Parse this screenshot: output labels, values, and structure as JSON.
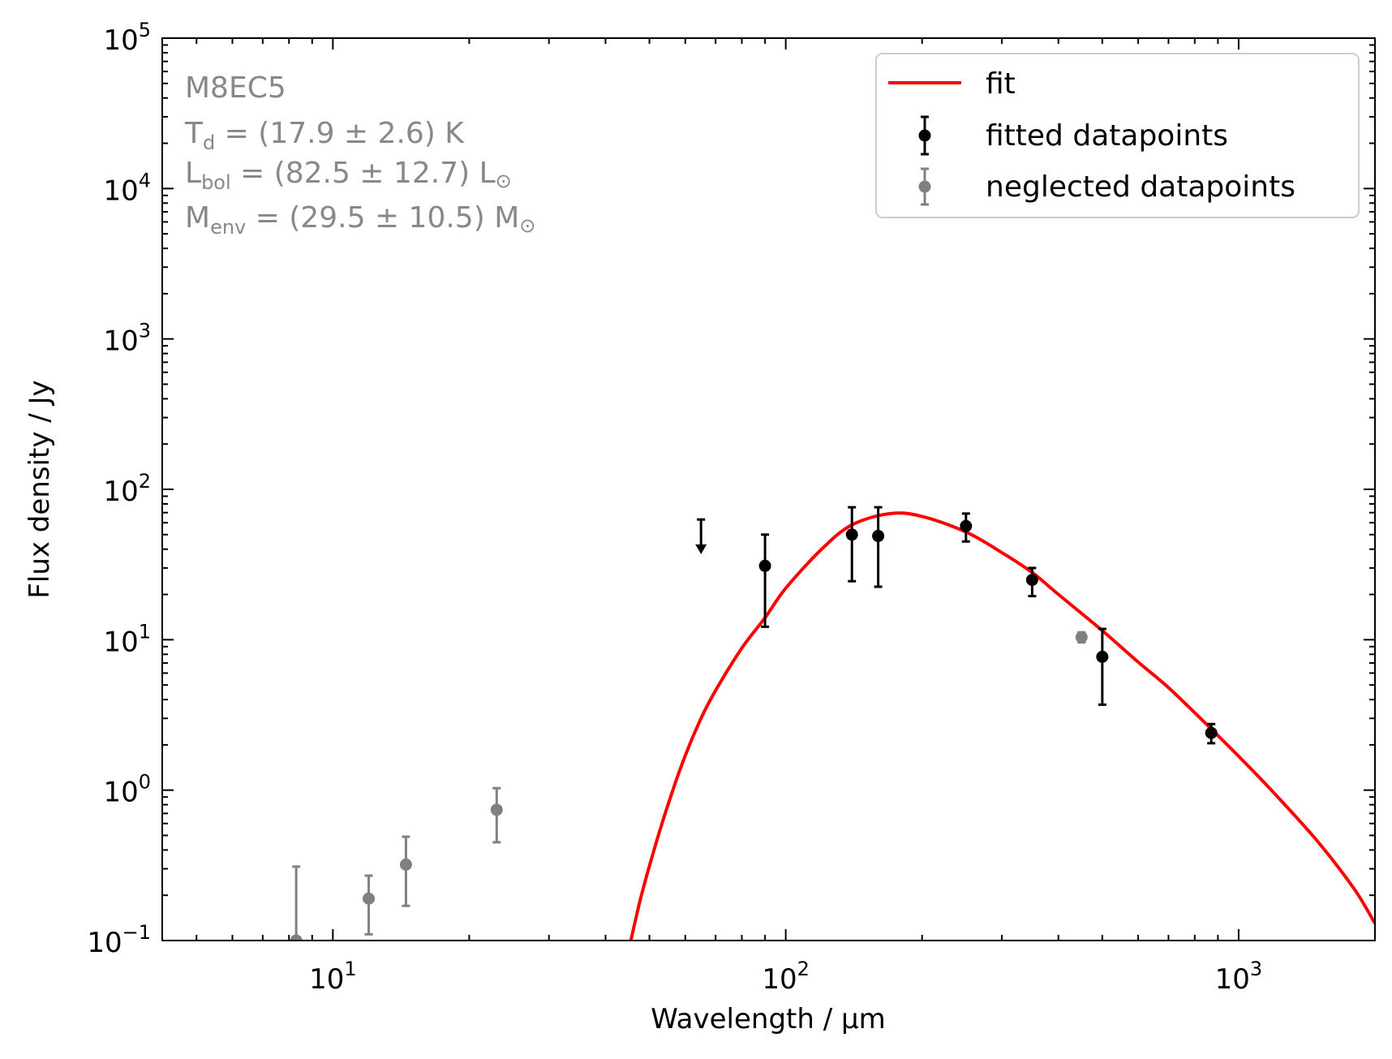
{
  "chart_data": {
    "type": "scatter",
    "xscale": "log",
    "yscale": "log",
    "xlim": [
      4.2,
      2000
    ],
    "ylim": [
      0.1,
      100000
    ],
    "xlabel": "Wavelength / μm",
    "ylabel": "Flux density / Jy",
    "x_ticks": [
      {
        "value": 10,
        "base": "10",
        "exp": "1"
      },
      {
        "value": 100,
        "base": "10",
        "exp": "2"
      },
      {
        "value": 1000,
        "base": "10",
        "exp": "3"
      }
    ],
    "y_ticks": [
      {
        "value": 0.1,
        "base": "10",
        "exp": "−1"
      },
      {
        "value": 1,
        "base": "10",
        "exp": "0"
      },
      {
        "value": 10,
        "base": "10",
        "exp": "1"
      },
      {
        "value": 100,
        "base": "10",
        "exp": "2"
      },
      {
        "value": 1000,
        "base": "10",
        "exp": "3"
      },
      {
        "value": 10000,
        "base": "10",
        "exp": "4"
      },
      {
        "value": 100000,
        "base": "10",
        "exp": "5"
      }
    ],
    "annotation": {
      "source": "M8EC5",
      "td": {
        "sym": "T",
        "sub": "d",
        "val": " = (17.9 ± 2.6) K"
      },
      "lbol": {
        "sym": "L",
        "sub": "bol",
        "val": " = (82.5 ± 12.7) L",
        "unit": "⊙"
      },
      "menv": {
        "sym": "M",
        "sub": "env",
        "val": " = (29.5 ± 10.5) M",
        "unit": "⊙"
      }
    },
    "legend": {
      "position": "top-right",
      "entries": [
        {
          "label": "fit",
          "kind": "line",
          "color": "#ff0000"
        },
        {
          "label": "fitted datapoints",
          "kind": "errorbar",
          "color": "#000000"
        },
        {
          "label": "neglected datapoints",
          "kind": "errorbar",
          "color": "#808080"
        }
      ]
    },
    "fit": {
      "name": "fit",
      "color": "#ff0000",
      "points": [
        [
          45.5,
          0.1
        ],
        [
          48,
          0.2
        ],
        [
          52,
          0.47
        ],
        [
          56,
          0.95
        ],
        [
          60,
          1.7
        ],
        [
          65,
          3.0
        ],
        [
          70,
          4.6
        ],
        [
          80,
          8.8
        ],
        [
          90,
          14
        ],
        [
          100,
          22
        ],
        [
          120,
          40
        ],
        [
          140,
          58
        ],
        [
          170,
          69
        ],
        [
          200,
          66
        ],
        [
          250,
          52
        ],
        [
          300,
          38
        ],
        [
          350,
          28
        ],
        [
          400,
          20
        ],
        [
          500,
          11.5
        ],
        [
          600,
          7.1
        ],
        [
          700,
          4.8
        ],
        [
          870,
          2.55
        ],
        [
          1000,
          1.68
        ],
        [
          1200,
          0.95
        ],
        [
          1500,
          0.45
        ],
        [
          1800,
          0.22
        ],
        [
          2000,
          0.13
        ]
      ]
    },
    "fitted_points": {
      "name": "fitted datapoints",
      "color": "#000000",
      "points": [
        {
          "x": 90,
          "y": 31,
          "ylo": 12.2,
          "yhi": 50
        },
        {
          "x": 140,
          "y": 50,
          "ylo": 24.5,
          "yhi": 76
        },
        {
          "x": 160,
          "y": 49,
          "ylo": 22.5,
          "yhi": 76
        },
        {
          "x": 250,
          "y": 57,
          "ylo": 45,
          "yhi": 69
        },
        {
          "x": 350,
          "y": 25,
          "ylo": 19.5,
          "yhi": 30
        },
        {
          "x": 500,
          "y": 7.7,
          "ylo": 3.7,
          "yhi": 11.8
        },
        {
          "x": 870,
          "y": 2.4,
          "ylo": 2.05,
          "yhi": 2.75
        }
      ]
    },
    "neglected_points": {
      "name": "neglected datapoints",
      "color": "#808080",
      "points": [
        {
          "x": 8.3,
          "y": 0.1,
          "ylo": 0.1,
          "yhi": 0.31
        },
        {
          "x": 12,
          "y": 0.19,
          "ylo": 0.11,
          "yhi": 0.27
        },
        {
          "x": 14.5,
          "y": 0.32,
          "ylo": 0.17,
          "yhi": 0.49
        },
        {
          "x": 23,
          "y": 0.74,
          "ylo": 0.45,
          "yhi": 1.03
        },
        {
          "x": 450,
          "y": 10.4,
          "ylo": 9.6,
          "yhi": 11.2
        }
      ]
    },
    "upper_limits": {
      "color": "#000000",
      "points": [
        {
          "x": 65,
          "y": 63,
          "arrow_to": 38
        }
      ]
    }
  }
}
